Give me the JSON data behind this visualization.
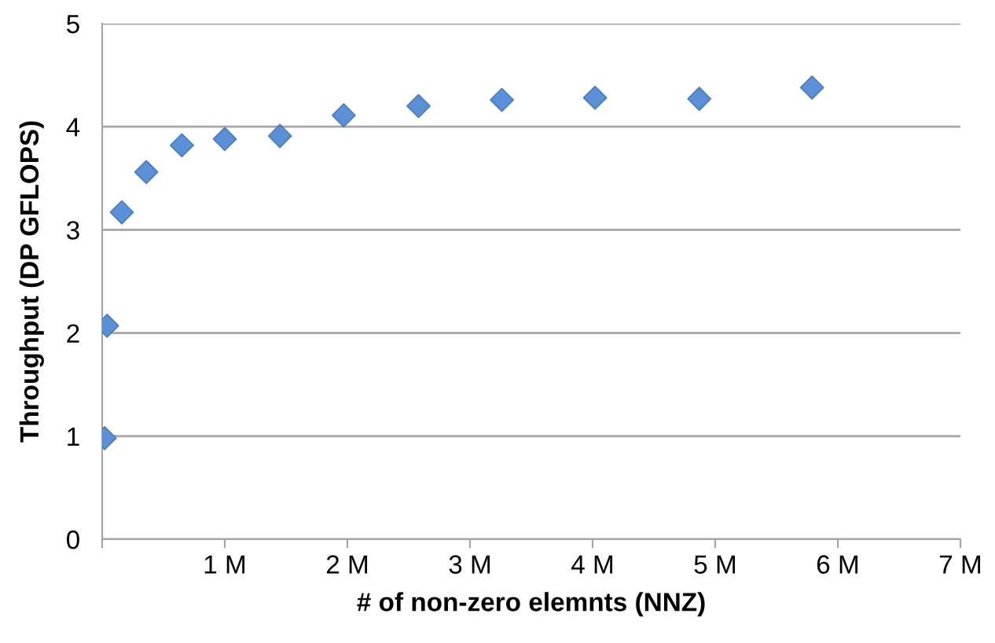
{
  "chart_data": {
    "type": "scatter",
    "xlabel": "# of non-zero elemnts (NNZ)",
    "ylabel": "Throughput (DP GFLOPS)",
    "x": [
      0.02,
      0.04,
      0.16,
      0.36,
      0.65,
      1.0,
      1.45,
      1.97,
      2.58,
      3.26,
      4.02,
      4.87,
      5.79
    ],
    "values": [
      0.98,
      2.07,
      3.17,
      3.56,
      3.82,
      3.88,
      3.91,
      4.11,
      4.2,
      4.26,
      4.28,
      4.27,
      4.38
    ],
    "color": "#5b8fd6",
    "marker": "diamond",
    "grid": "y",
    "xlim": [
      0,
      7
    ],
    "xticks": [
      {
        "value": 0,
        "label": null
      },
      {
        "value": 1,
        "label": "1 M"
      },
      {
        "value": 2,
        "label": "2 M"
      },
      {
        "value": 3,
        "label": "3 M"
      },
      {
        "value": 4,
        "label": "4 M"
      },
      {
        "value": 5,
        "label": "5 M"
      },
      {
        "value": 6,
        "label": "6 M"
      },
      {
        "value": 7,
        "label": "7 M"
      }
    ],
    "ylim": [
      0,
      5
    ],
    "yticks": [
      0,
      1,
      2,
      3,
      4,
      5
    ]
  }
}
